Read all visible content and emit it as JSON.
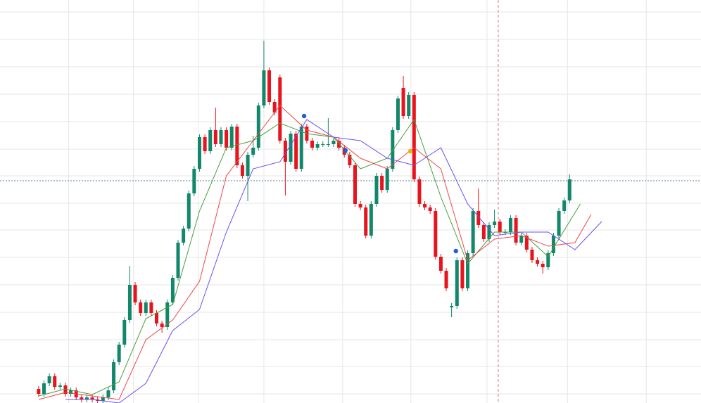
{
  "chart_data": {
    "type": "candlestick",
    "xlim": [
      -7.2,
      123.5
    ],
    "ylim": [
      0,
      573
    ],
    "xticks": [
      5.6,
      17.7,
      29.8,
      42,
      56.7,
      69.4,
      83.6,
      98.6,
      113.3
    ],
    "yticks": [
      13,
      52,
      90,
      129,
      168,
      207,
      246,
      284,
      323,
      361,
      400,
      439,
      478,
      517,
      556
    ],
    "grid": true,
    "up_color": "#12876b",
    "down_color": "#e8141d",
    "open": [
      20,
      13,
      28,
      38,
      23,
      25,
      13,
      18,
      8,
      5,
      8,
      5,
      3,
      8,
      18,
      58,
      83,
      118,
      168,
      143,
      128,
      143,
      128,
      113,
      108,
      143,
      178,
      228,
      248,
      298,
      333,
      378,
      358,
      388,
      368,
      388,
      363,
      393,
      338,
      323,
      353,
      363,
      423,
      473,
      428,
      463,
      373,
      343,
      383,
      333,
      393,
      373,
      363,
      368,
      368,
      368,
      373,
      363,
      353,
      338,
      283,
      278,
      238,
      283,
      323,
      303,
      333,
      388,
      448,
      408,
      438,
      318,
      283,
      278,
      273,
      208,
      188,
      136,
      138,
      203,
      163,
      213,
      273,
      253,
      233,
      253,
      258,
      243,
      243,
      263,
      228,
      238,
      218,
      203,
      198,
      193,
      213,
      238,
      273,
      288
    ],
    "high": [
      24,
      32,
      42,
      42,
      29,
      29,
      22,
      22,
      12,
      12,
      12,
      9,
      12,
      22,
      62,
      87,
      122,
      195,
      172,
      147,
      147,
      147,
      132,
      117,
      147,
      182,
      232,
      252,
      302,
      337,
      382,
      382,
      392,
      420,
      392,
      392,
      397,
      397,
      342,
      357,
      380,
      427,
      515,
      477,
      432,
      467,
      377,
      387,
      387,
      397,
      397,
      377,
      372,
      372,
      405,
      377,
      377,
      367,
      357,
      342,
      287,
      282,
      287,
      327,
      327,
      337,
      392,
      437,
      465,
      442,
      442,
      322,
      287,
      282,
      277,
      212,
      192,
      142,
      207,
      207,
      217,
      277,
      305,
      257,
      257,
      275,
      262,
      247,
      267,
      267,
      242,
      242,
      222,
      207,
      202,
      217,
      242,
      277,
      292,
      325
    ],
    "low": [
      9,
      9,
      24,
      19,
      19,
      9,
      9,
      4,
      1,
      1,
      1,
      0,
      0,
      4,
      14,
      54,
      79,
      114,
      139,
      124,
      124,
      124,
      109,
      100,
      104,
      139,
      174,
      224,
      244,
      294,
      329,
      354,
      354,
      364,
      364,
      359,
      359,
      334,
      319,
      287,
      349,
      359,
      419,
      424,
      409,
      369,
      295,
      339,
      329,
      329,
      369,
      359,
      359,
      364,
      364,
      364,
      359,
      349,
      334,
      279,
      274,
      234,
      234,
      279,
      299,
      299,
      329,
      384,
      404,
      404,
      314,
      279,
      274,
      269,
      204,
      184,
      159,
      122,
      134,
      159,
      159,
      209,
      249,
      229,
      229,
      249,
      239,
      239,
      239,
      224,
      224,
      214,
      199,
      194,
      184,
      189,
      209,
      234,
      269,
      284
    ],
    "close": [
      13,
      28,
      38,
      23,
      25,
      13,
      18,
      8,
      5,
      8,
      5,
      3,
      8,
      18,
      58,
      83,
      118,
      168,
      143,
      128,
      143,
      128,
      113,
      108,
      143,
      178,
      228,
      248,
      298,
      333,
      378,
      358,
      388,
      368,
      388,
      363,
      393,
      338,
      323,
      353,
      363,
      423,
      473,
      428,
      413,
      373,
      343,
      383,
      333,
      393,
      373,
      363,
      368,
      368,
      368,
      373,
      363,
      353,
      338,
      283,
      278,
      238,
      283,
      323,
      303,
      333,
      388,
      433,
      408,
      438,
      318,
      283,
      278,
      273,
      208,
      188,
      163,
      138,
      203,
      163,
      213,
      273,
      253,
      233,
      253,
      258,
      243,
      243,
      263,
      228,
      238,
      218,
      203,
      198,
      193,
      213,
      238,
      273,
      288,
      318
    ],
    "lines": [
      {
        "color": "#4a9e3c",
        "x": [
          0,
          5,
          10,
          15,
          20,
          25,
          30,
          35,
          40,
          45,
          50,
          55,
          60,
          65,
          70,
          75,
          80,
          85,
          90,
          95,
          101
        ],
        "values": [
          10,
          20,
          12,
          30,
          120,
          140,
          273,
          363,
          373,
          398,
          383,
          378,
          333,
          348,
          403,
          293,
          198,
          243,
          243,
          208,
          283
        ]
      },
      {
        "color": "#f0464a",
        "x": [
          0,
          5,
          10,
          15,
          20,
          25,
          30,
          35,
          40,
          45,
          50,
          55,
          60,
          65,
          70,
          75,
          80,
          85,
          90,
          95,
          100,
          103
        ],
        "values": [
          5,
          15,
          10,
          5,
          90,
          118,
          173,
          323,
          373,
          423,
          388,
          378,
          348,
          333,
          363,
          333,
          203,
          233,
          238,
          223,
          228,
          268
        ]
      },
      {
        "color": "#6a4ff0",
        "x": [
          5,
          10,
          15,
          20,
          25,
          30,
          35,
          40,
          45,
          50,
          55,
          60,
          65,
          70,
          75,
          80,
          85,
          90,
          95,
          100,
          105
        ],
        "values": [
          5,
          5,
          0,
          28,
          103,
          133,
          243,
          333,
          343,
          403,
          378,
          373,
          348,
          338,
          363,
          283,
          238,
          243,
          243,
          218,
          258
        ]
      }
    ],
    "markers": [
      {
        "x": 49.5,
        "value": 408,
        "color": "#1f5fd6"
      },
      {
        "x": 57.2,
        "value": 359,
        "color": "#1f5fd6"
      },
      {
        "x": 69.3,
        "value": 358,
        "color": "#f0b400"
      },
      {
        "x": 77.8,
        "value": 216,
        "color": "#1f5fd6"
      }
    ],
    "price_line": 316,
    "cursor_x": 85.7
  }
}
